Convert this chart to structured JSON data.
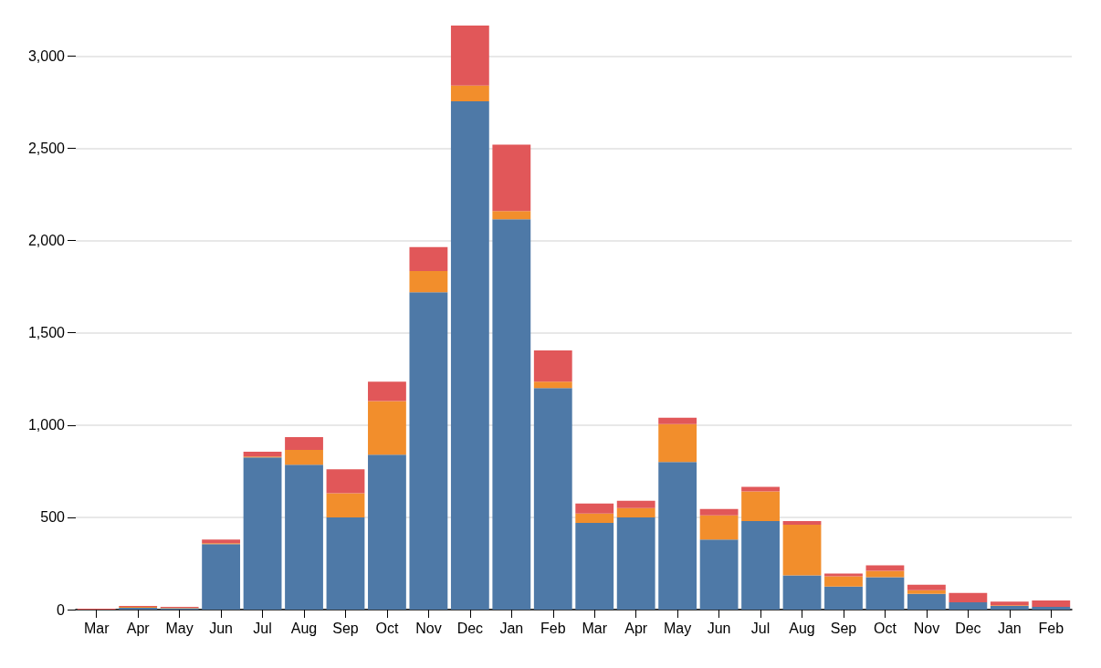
{
  "chart_data": {
    "type": "bar",
    "stacked": true,
    "categories": [
      "Mar",
      "Apr",
      "May",
      "Jun",
      "Jul",
      "Aug",
      "Sep",
      "Oct",
      "Nov",
      "Dec",
      "Jan",
      "Feb",
      "Mar",
      "Apr",
      "May",
      "Jun",
      "Jul",
      "Aug",
      "Sep",
      "Oct",
      "Nov",
      "Dec",
      "Jan",
      "Feb"
    ],
    "series": [
      {
        "color": "#4e79a7",
        "values": [
          0,
          10,
          7,
          355,
          825,
          785,
          500,
          840,
          1720,
          2755,
          2115,
          1200,
          470,
          500,
          800,
          380,
          480,
          185,
          125,
          175,
          85,
          40,
          20,
          15
        ]
      },
      {
        "color": "#f28e2c",
        "values": [
          0,
          5,
          3,
          5,
          5,
          80,
          130,
          290,
          115,
          85,
          45,
          35,
          50,
          50,
          205,
          130,
          160,
          275,
          55,
          35,
          20,
          null,
          3,
          0
        ]
      },
      {
        "color": "#e15759",
        "values": [
          5,
          5,
          5,
          20,
          25,
          70,
          130,
          105,
          130,
          325,
          360,
          170,
          55,
          40,
          35,
          35,
          25,
          20,
          15,
          30,
          30,
          50,
          20,
          35
        ]
      }
    ],
    "ylim": [
      0,
      3165
    ],
    "yticks": [
      0,
      500,
      {
        "value": 1000,
        "label": "1,000"
      },
      {
        "value": 1500,
        "label": "1,500"
      },
      {
        "value": 2000,
        "label": "2,000"
      },
      {
        "value": 2500,
        "label": "2,500"
      },
      {
        "value": 3000,
        "label": "3,000"
      }
    ],
    "grid": "y"
  }
}
